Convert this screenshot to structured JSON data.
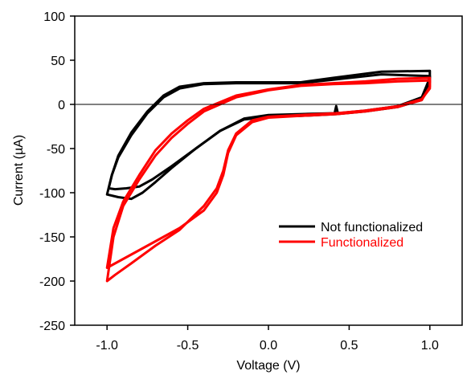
{
  "chart_data": {
    "type": "line",
    "title": "",
    "xlabel": "Voltage (V)",
    "ylabel": "Current (µA)",
    "xlim": [
      -1.2,
      1.2
    ],
    "ylim": [
      -250,
      100
    ],
    "xticks": [
      -1.0,
      -0.5,
      0.0,
      0.5,
      1.0
    ],
    "xtick_labels": [
      "-1.0",
      "-0.5",
      "0.0",
      "0.5",
      "1.0"
    ],
    "yticks": [
      -250,
      -200,
      -150,
      -100,
      -50,
      0,
      50,
      100
    ],
    "ytick_labels": [
      "-250",
      "-200",
      "-150",
      "-100",
      "-50",
      "0",
      "50",
      "100"
    ],
    "reference_line_y": 0,
    "grid": false,
    "legend_position": "lower-right",
    "series": [
      {
        "name": "Not functionalized",
        "color": "#000000",
        "cycles": [
          [
            [
              1.0,
              32
            ],
            [
              0.7,
              34
            ],
            [
              0.4,
              28
            ],
            [
              0.2,
              24
            ],
            [
              0.0,
              24
            ],
            [
              -0.2,
              24
            ],
            [
              -0.4,
              23
            ],
            [
              -0.55,
              18
            ],
            [
              -0.65,
              8
            ],
            [
              -0.75,
              -10
            ],
            [
              -0.85,
              -35
            ],
            [
              -0.93,
              -60
            ],
            [
              -0.97,
              -80
            ],
            [
              -0.99,
              -95
            ],
            [
              -0.95,
              -96
            ],
            [
              -0.88,
              -95
            ],
            [
              -0.8,
              -93
            ],
            [
              -0.72,
              -85
            ],
            [
              -0.6,
              -70
            ],
            [
              -0.45,
              -50
            ],
            [
              -0.3,
              -30
            ],
            [
              -0.15,
              -17
            ],
            [
              0.0,
              -14
            ],
            [
              0.2,
              -13
            ],
            [
              0.42,
              -11
            ],
            [
              0.6,
              -8
            ],
            [
              0.8,
              -3
            ],
            [
              0.95,
              5
            ],
            [
              1.0,
              25
            ],
            [
              1.0,
              32
            ]
          ],
          [
            [
              1.0,
              38
            ],
            [
              0.7,
              37
            ],
            [
              0.4,
              30
            ],
            [
              0.2,
              25
            ],
            [
              0.0,
              25
            ],
            [
              -0.2,
              25
            ],
            [
              -0.4,
              24
            ],
            [
              -0.55,
              20
            ],
            [
              -0.65,
              10
            ],
            [
              -0.75,
              -8
            ],
            [
              -0.85,
              -32
            ],
            [
              -0.93,
              -58
            ],
            [
              -0.97,
              -80
            ],
            [
              -1.0,
              -102
            ],
            [
              -0.93,
              -105
            ],
            [
              -0.85,
              -107
            ],
            [
              -0.78,
              -100
            ],
            [
              -0.7,
              -88
            ],
            [
              -0.6,
              -72
            ],
            [
              -0.45,
              -50
            ],
            [
              -0.3,
              -30
            ],
            [
              -0.15,
              -16
            ],
            [
              0.0,
              -12
            ],
            [
              0.2,
              -11
            ],
            [
              0.41,
              -10
            ],
            [
              0.42,
              -2
            ],
            [
              0.43,
              -10
            ],
            [
              0.6,
              -7
            ],
            [
              0.8,
              -2
            ],
            [
              0.95,
              8
            ],
            [
              1.0,
              30
            ],
            [
              1.0,
              38
            ]
          ]
        ]
      },
      {
        "name": "Functionalized",
        "color": "#ff0000",
        "cycles": [
          [
            [
              1.0,
              30
            ],
            [
              0.8,
              29
            ],
            [
              0.6,
              26
            ],
            [
              0.4,
              24
            ],
            [
              0.2,
              22
            ],
            [
              0.0,
              17
            ],
            [
              -0.2,
              10
            ],
            [
              -0.4,
              -5
            ],
            [
              -0.5,
              -18
            ],
            [
              -0.6,
              -33
            ],
            [
              -0.7,
              -52
            ],
            [
              -0.8,
              -80
            ],
            [
              -0.9,
              -110
            ],
            [
              -0.96,
              -140
            ],
            [
              -1.0,
              -185
            ],
            [
              -0.95,
              -180
            ],
            [
              -0.85,
              -170
            ],
            [
              -0.7,
              -155
            ],
            [
              -0.55,
              -140
            ],
            [
              -0.4,
              -120
            ],
            [
              -0.32,
              -100
            ],
            [
              -0.28,
              -80
            ],
            [
              -0.25,
              -55
            ],
            [
              -0.2,
              -35
            ],
            [
              -0.1,
              -20
            ],
            [
              0.0,
              -15
            ],
            [
              0.2,
              -13
            ],
            [
              0.42,
              -11
            ],
            [
              0.6,
              -8
            ],
            [
              0.8,
              -3
            ],
            [
              0.95,
              5
            ],
            [
              1.0,
              20
            ],
            [
              1.0,
              30
            ]
          ],
          [
            [
              1.0,
              27
            ],
            [
              0.8,
              26
            ],
            [
              0.6,
              24
            ],
            [
              0.4,
              23
            ],
            [
              0.2,
              21
            ],
            [
              0.0,
              16
            ],
            [
              -0.2,
              8
            ],
            [
              -0.4,
              -8
            ],
            [
              -0.5,
              -22
            ],
            [
              -0.6,
              -38
            ],
            [
              -0.7,
              -58
            ],
            [
              -0.8,
              -85
            ],
            [
              -0.9,
              -115
            ],
            [
              -0.96,
              -150
            ],
            [
              -1.0,
              -200
            ],
            [
              -0.95,
              -193
            ],
            [
              -0.85,
              -180
            ],
            [
              -0.7,
              -160
            ],
            [
              -0.55,
              -142
            ],
            [
              -0.4,
              -115
            ],
            [
              -0.32,
              -95
            ],
            [
              -0.28,
              -75
            ],
            [
              -0.25,
              -52
            ],
            [
              -0.2,
              -33
            ],
            [
              -0.1,
              -18
            ],
            [
              0.0,
              -14
            ],
            [
              0.2,
              -12
            ],
            [
              0.42,
              -10
            ],
            [
              0.6,
              -7
            ],
            [
              0.8,
              -2
            ],
            [
              0.95,
              6
            ],
            [
              1.0,
              18
            ],
            [
              1.0,
              27
            ]
          ]
        ]
      }
    ]
  }
}
